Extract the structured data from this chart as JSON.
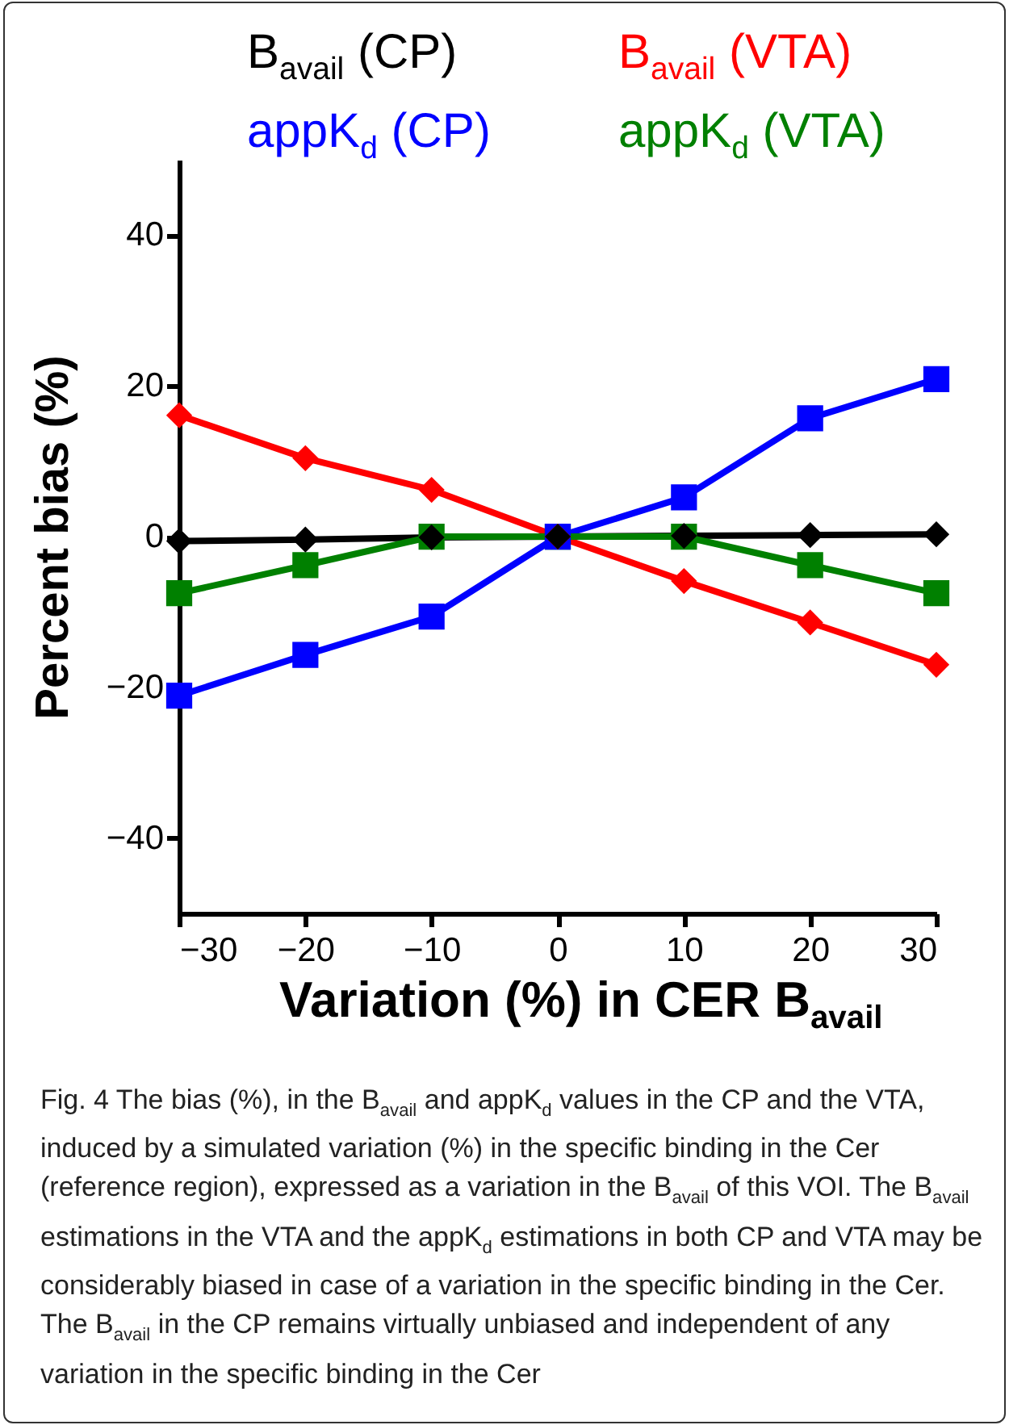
{
  "chart_data": {
    "type": "line",
    "xlabel": "Variation (%) in CER B$_{avail}$",
    "ylabel": "Percent  bias (%)",
    "x": [
      -30,
      -20,
      -10,
      0,
      10,
      20,
      30
    ],
    "series": [
      {
        "name": "B$_{avail}$ (CP)",
        "color": "#000000",
        "marker": "diamond",
        "values": [
          -0.6,
          -0.4,
          -0.1,
          0,
          0.1,
          0.2,
          0.3
        ]
      },
      {
        "name": "B$_{avail}$ (VTA)",
        "color": "#ff0000",
        "marker": "diamond",
        "values": [
          16.1,
          10.4,
          6.2,
          0,
          -5.9,
          -11.4,
          -17
        ]
      },
      {
        "name": "appK$_{d}$ (CP)",
        "color": "#0000ff",
        "marker": "square",
        "values": [
          -21.1,
          -15.7,
          -10.6,
          0,
          5.2,
          15.7,
          20.9
        ]
      },
      {
        "name": "appK$_{d}$ (VTA)",
        "color": "#008000",
        "marker": "square",
        "values": [
          -7.5,
          -3.8,
          0,
          0,
          0,
          -3.8,
          -7.5
        ]
      }
    ],
    "xlim": [
      -30,
      30
    ],
    "xticks": [
      -30,
      -20,
      -10,
      0,
      10,
      20,
      30
    ],
    "ylim": [
      -50,
      50
    ],
    "yticks": [
      -40,
      -20,
      0,
      20,
      40
    ],
    "grid": false,
    "legend": "top",
    "line_style": "solid",
    "annotations": [
      "Fig. 4 The bias (%), in the B$_{avail}$ and appK$_{d}$ values in the CP and the VTA, induced by a simulated variation (%) in the specific binding in the Cer (reference region), expressed as a variation in the B$_{avail}$ of this VOI. The B$_{avail}$ estimations in the VTA and the appK$_{d}$ estimations in both CP and VTA may be considerably biased in case of a variation in the specific binding in the Cer. The B$_{avail}$ in the CP remains virtually unbiased and independent of any variation in the specific binding in the Cer"
    ]
  }
}
